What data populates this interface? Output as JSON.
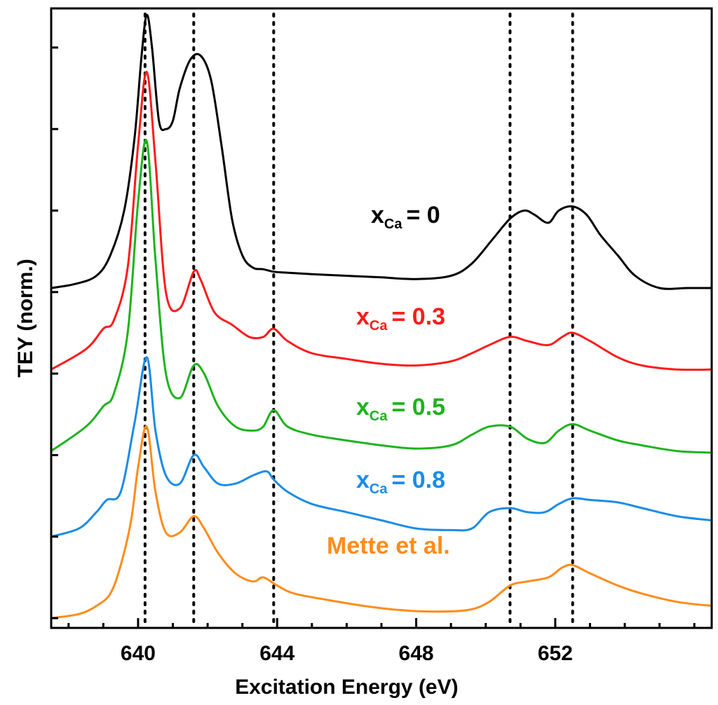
{
  "chart_data": {
    "type": "line",
    "title": "",
    "xlabel": "Excitation Energy (eV)",
    "ylabel": "TEY (norm.)",
    "xlim": [
      637.5,
      656.5
    ],
    "ylim": [
      0,
      7.6
    ],
    "xticks": [
      640,
      644,
      648,
      652
    ],
    "xtick_labels": [
      "640",
      "644",
      "648",
      "652"
    ],
    "ytick_values": [
      0.12,
      1.12,
      2.12,
      3.12,
      4.12,
      5.12,
      6.12,
      7.12
    ],
    "reference_lines_x": [
      640.2,
      641.6,
      643.9,
      650.7,
      652.5
    ],
    "series": [
      {
        "name": "xCa = 0",
        "label_main": "x",
        "label_sub": "Ca",
        "label_value": "= 0",
        "color": "#000000",
        "offset": 4,
        "x": [
          637.5,
          638.2,
          638.8,
          639.2,
          639.6,
          639.9,
          640.1,
          640.25,
          640.4,
          640.6,
          640.8,
          641.0,
          641.2,
          641.5,
          641.8,
          642.1,
          642.4,
          642.7,
          643.0,
          643.3,
          643.6,
          643.9,
          644.2,
          645.0,
          646.0,
          647.0,
          648.0,
          649.0,
          649.6,
          650.2,
          650.7,
          651.1,
          651.4,
          651.8,
          652.1,
          652.5,
          652.9,
          653.3,
          653.8,
          654.3,
          655.0,
          655.8,
          656.5
        ],
        "y": [
          0.05,
          0.1,
          0.2,
          0.45,
          1.0,
          1.9,
          2.9,
          3.4,
          3.0,
          2.1,
          2.0,
          2.1,
          2.5,
          2.85,
          2.9,
          2.6,
          1.8,
          0.9,
          0.45,
          0.3,
          0.28,
          0.25,
          0.24,
          0.22,
          0.2,
          0.18,
          0.16,
          0.2,
          0.35,
          0.65,
          0.9,
          1.0,
          0.95,
          0.85,
          1.0,
          1.05,
          0.95,
          0.7,
          0.45,
          0.2,
          0.05,
          0.05,
          0.05
        ]
      },
      {
        "name": "xCa = 0.3",
        "label_main": "x",
        "label_sub": "Ca",
        "label_value": "= 0.3",
        "color": "#ff1a1a",
        "offset": 3,
        "x": [
          637.5,
          638.5,
          639.0,
          639.3,
          639.7,
          640.0,
          640.25,
          640.5,
          640.8,
          641.2,
          641.6,
          641.8,
          642.2,
          642.7,
          643.2,
          643.6,
          643.9,
          644.3,
          645.0,
          646.0,
          647.0,
          648.0,
          649.0,
          649.6,
          650.1,
          650.7,
          651.2,
          651.8,
          652.2,
          652.5,
          653.0,
          653.8,
          654.5,
          655.5,
          656.5
        ],
        "y": [
          0.05,
          0.3,
          0.55,
          0.65,
          1.3,
          2.8,
          3.7,
          2.6,
          1.0,
          0.8,
          1.25,
          1.15,
          0.75,
          0.6,
          0.45,
          0.45,
          0.55,
          0.4,
          0.25,
          0.18,
          0.12,
          0.1,
          0.15,
          0.25,
          0.35,
          0.45,
          0.4,
          0.35,
          0.45,
          0.5,
          0.4,
          0.2,
          0.1,
          0.05,
          0.05
        ]
      },
      {
        "name": "xCa = 0.5",
        "label_main": "x",
        "label_sub": "Ca",
        "label_value": "= 0.5",
        "color": "#1db31d",
        "offset": 2,
        "x": [
          637.5,
          638.5,
          639.0,
          639.3,
          639.7,
          640.0,
          640.25,
          640.5,
          640.8,
          641.2,
          641.6,
          641.9,
          642.3,
          642.8,
          643.3,
          643.6,
          643.9,
          644.3,
          645.0,
          646.0,
          647.0,
          648.0,
          649.0,
          649.6,
          650.1,
          650.7,
          651.2,
          651.7,
          652.1,
          652.5,
          653.0,
          653.8,
          654.5,
          655.5,
          656.5
        ],
        "y": [
          0.05,
          0.35,
          0.6,
          0.75,
          1.5,
          3.1,
          3.85,
          2.4,
          1.0,
          0.7,
          1.1,
          1.0,
          0.6,
          0.35,
          0.3,
          0.35,
          0.55,
          0.35,
          0.25,
          0.18,
          0.12,
          0.08,
          0.12,
          0.25,
          0.35,
          0.35,
          0.2,
          0.15,
          0.3,
          0.38,
          0.3,
          0.18,
          0.12,
          0.05,
          0.03
        ]
      },
      {
        "name": "xCa = 0.8",
        "label_main": "x",
        "label_sub": "Ca",
        "label_value": "= 0.8",
        "color": "#1a8ce6",
        "offset": 1,
        "x": [
          637.5,
          638.3,
          638.8,
          639.1,
          639.5,
          639.9,
          640.25,
          640.5,
          640.8,
          641.2,
          641.6,
          641.9,
          642.3,
          642.8,
          643.3,
          643.7,
          643.9,
          644.3,
          645.0,
          646.0,
          647.0,
          648.0,
          649.0,
          649.6,
          650.1,
          650.7,
          651.2,
          651.7,
          652.1,
          652.5,
          653.0,
          653.8,
          654.5,
          655.5,
          656.5
        ],
        "y": [
          0.0,
          0.1,
          0.3,
          0.45,
          0.55,
          1.4,
          2.2,
          1.3,
          0.75,
          0.65,
          1.0,
          0.85,
          0.65,
          0.65,
          0.75,
          0.8,
          0.7,
          0.55,
          0.4,
          0.3,
          0.2,
          0.1,
          0.08,
          0.1,
          0.3,
          0.35,
          0.3,
          0.3,
          0.4,
          0.47,
          0.45,
          0.42,
          0.35,
          0.25,
          0.2
        ]
      },
      {
        "name": "Mette et al.",
        "label_main": "Mette et al.",
        "label_sub": "",
        "label_value": "",
        "color": "#ff8c1a",
        "offset": 0,
        "x": [
          637.5,
          638.3,
          638.8,
          639.2,
          639.5,
          639.8,
          640.0,
          640.25,
          640.5,
          640.8,
          641.2,
          641.6,
          641.9,
          642.3,
          642.8,
          643.3,
          643.6,
          644.0,
          644.5,
          645.5,
          646.5,
          647.5,
          648.5,
          649.5,
          650.1,
          650.7,
          651.2,
          651.8,
          652.2,
          652.5,
          653.0,
          653.8,
          654.5,
          655.5,
          656.5
        ],
        "y": [
          0.0,
          0.05,
          0.15,
          0.3,
          0.65,
          1.2,
          1.85,
          2.35,
          1.55,
          1.05,
          1.05,
          1.25,
          1.1,
          0.8,
          0.55,
          0.45,
          0.5,
          0.4,
          0.3,
          0.22,
          0.15,
          0.1,
          0.08,
          0.1,
          0.2,
          0.4,
          0.45,
          0.5,
          0.62,
          0.65,
          0.55,
          0.4,
          0.3,
          0.2,
          0.15
        ]
      }
    ]
  }
}
